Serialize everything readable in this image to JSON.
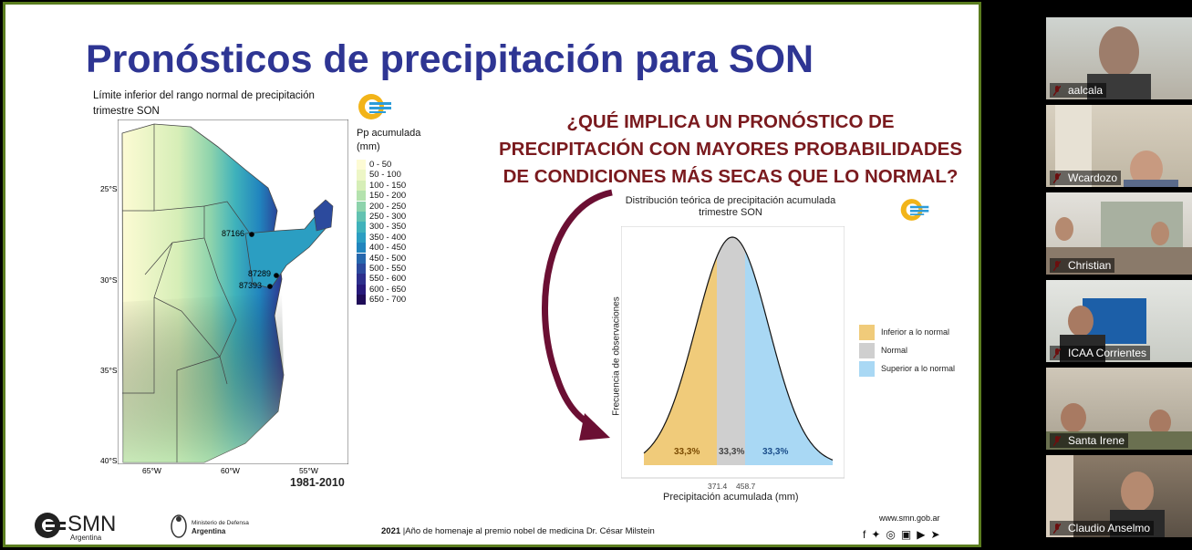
{
  "slide": {
    "title": "Pronósticos de precipitación para SON",
    "map_title_line1": "Límite inferior del rango normal de precipitación",
    "map_title_line2": "trimestre SON",
    "legend_title_line1": "Pp acumulada",
    "legend_title_line2": "(mm)",
    "legend": [
      {
        "label": "0 - 50",
        "color": "#fdfbd4"
      },
      {
        "label": "50 - 100",
        "color": "#edf6c6"
      },
      {
        "label": "100 - 150",
        "color": "#d6eeb7"
      },
      {
        "label": "150 - 200",
        "color": "#b4e2ae"
      },
      {
        "label": "200 - 250",
        "color": "#8dd3ac"
      },
      {
        "label": "250 - 300",
        "color": "#62c2b1"
      },
      {
        "label": "300 - 350",
        "color": "#3fb2bb"
      },
      {
        "label": "350 - 400",
        "color": "#2b9ec2"
      },
      {
        "label": "400 - 450",
        "color": "#2185be"
      },
      {
        "label": "450 - 500",
        "color": "#2667ad"
      },
      {
        "label": "500 - 550",
        "color": "#2c4a9d"
      },
      {
        "label": "550 - 600",
        "color": "#2d2f8c"
      },
      {
        "label": "600 - 650",
        "color": "#27197a"
      },
      {
        "label": "650 - 700",
        "color": "#1f0c58"
      }
    ],
    "lat_labels": [
      "25°S",
      "30°S",
      "35°S",
      "40°S"
    ],
    "lon_labels": [
      "65°W",
      "60°W",
      "55°W"
    ],
    "stations": [
      "87166",
      "87289",
      "87393"
    ],
    "period": "1981-2010",
    "question_line1": "¿QUÉ IMPLICA UN PRONÓSTICO DE",
    "question_line2": "PRECIPITACIÓN CON MAYORES PROBABILIDADES",
    "question_line3": "DE CONDICIONES MÁS SECAS QUE LO NORMAL?",
    "footer_year": "2021",
    "footer_text": "|Año de homenaje al premio nobel de medicina Dr. César Milstein",
    "website": "www.smn.gob.ar",
    "logo_text": "SMN",
    "logo_sub": "Argentina",
    "ministry_line1": "Ministerio de Defensa",
    "ministry_line2": "Argentina"
  },
  "chart_data": {
    "type": "area",
    "title": "Distribución teórica de precipitación acumulada trimestre SON",
    "xlabel": "Precipitación acumulada (mm)",
    "ylabel": "Frecuencia de observaciones",
    "x_ticks": [
      "371.4",
      "458.7"
    ],
    "series": [
      {
        "name": "Inferior a lo normal",
        "percent_label": "33,3%",
        "color": "#f0cb7a"
      },
      {
        "name": "Normal",
        "percent_label": "33,3%",
        "color": "#cfcfcf"
      },
      {
        "name": "Superior a lo normal",
        "percent_label": "33,3%",
        "color": "#a9d8f4"
      }
    ]
  },
  "participants": [
    {
      "name": "aalcala"
    },
    {
      "name": "Wcardozo"
    },
    {
      "name": "Christian"
    },
    {
      "name": "ICAA Corrientes"
    },
    {
      "name": "Santa Irene"
    },
    {
      "name": "Claudio Anselmo"
    }
  ]
}
